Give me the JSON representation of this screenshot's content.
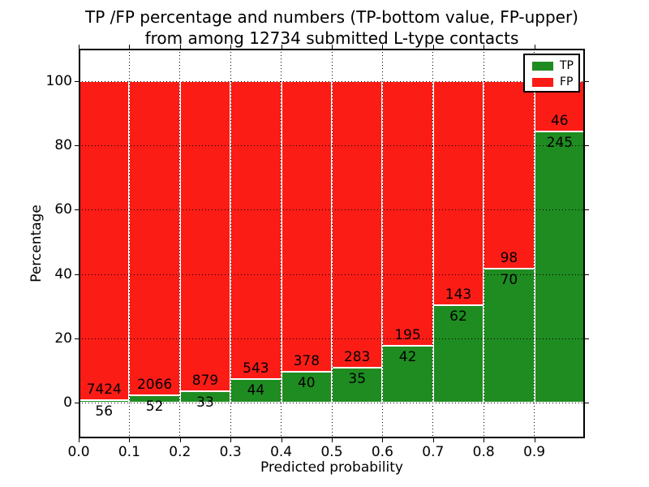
{
  "title": {
    "line1": "TP /FP percentage and numbers (TP-bottom value, FP-upper)",
    "line2": "from among 12734 submitted L-type contacts"
  },
  "axes": {
    "xlabel": "Predicted probability",
    "ylabel": "Percentage",
    "x_ticks": [
      "0.0",
      "0.1",
      "0.2",
      "0.3",
      "0.4",
      "0.5",
      "0.6",
      "0.7",
      "0.8",
      "0.9"
    ],
    "x_tick_values": [
      0.0,
      0.1,
      0.2,
      0.3,
      0.4,
      0.5,
      0.6,
      0.7,
      0.8,
      0.9
    ],
    "y_ticks": [
      "0",
      "20",
      "40",
      "60",
      "80",
      "100"
    ],
    "y_tick_values": [
      0,
      20,
      40,
      60,
      80,
      100
    ]
  },
  "legend": {
    "position": "upper right",
    "items": [
      {
        "label": "TP",
        "color": "#1f8c21"
      },
      {
        "label": "FP",
        "color": "#fc1c16"
      }
    ]
  },
  "colors": {
    "tp_green": "#1f8c21",
    "fp_red": "#fc1c16",
    "background": "#ffffff",
    "grid": "#000000",
    "bar_edge": "#ffffff"
  },
  "chart_data": {
    "type": "bar",
    "stacked": true,
    "title": "TP /FP percentage and numbers (TP-bottom value, FP-upper) from among 12734 submitted L-type contacts",
    "xlabel": "Predicted probability",
    "ylabel": "Percentage",
    "total_contacts": 12734,
    "categories": [
      "0.0-0.1",
      "0.1-0.2",
      "0.2-0.3",
      "0.3-0.4",
      "0.4-0.5",
      "0.5-0.6",
      "0.6-0.7",
      "0.7-0.8",
      "0.8-0.9",
      "0.9-1.0"
    ],
    "bin_start": [
      0.0,
      0.1,
      0.2,
      0.3,
      0.4,
      0.5,
      0.6,
      0.7,
      0.8,
      0.9
    ],
    "bin_width": 0.1,
    "series": [
      {
        "name": "TP",
        "color": "#1f8c21",
        "counts": [
          56,
          52,
          33,
          44,
          40,
          35,
          42,
          62,
          70,
          245
        ],
        "percent": [
          0.75,
          2.46,
          3.62,
          7.5,
          9.57,
          11.01,
          17.72,
          30.24,
          41.67,
          84.19
        ]
      },
      {
        "name": "FP",
        "color": "#fc1c16",
        "counts": [
          7424,
          2066,
          879,
          543,
          378,
          283,
          195,
          143,
          98,
          46
        ],
        "percent": [
          99.25,
          97.54,
          96.38,
          92.5,
          90.43,
          88.99,
          82.28,
          69.76,
          58.33,
          15.81
        ]
      }
    ],
    "xlim": [
      0,
      1
    ],
    "ylim": [
      -11,
      110
    ],
    "grid": true,
    "grid_style": "dotted",
    "grid_y": [
      0,
      20,
      40,
      60,
      80,
      100
    ],
    "legend_position": "upper right"
  }
}
